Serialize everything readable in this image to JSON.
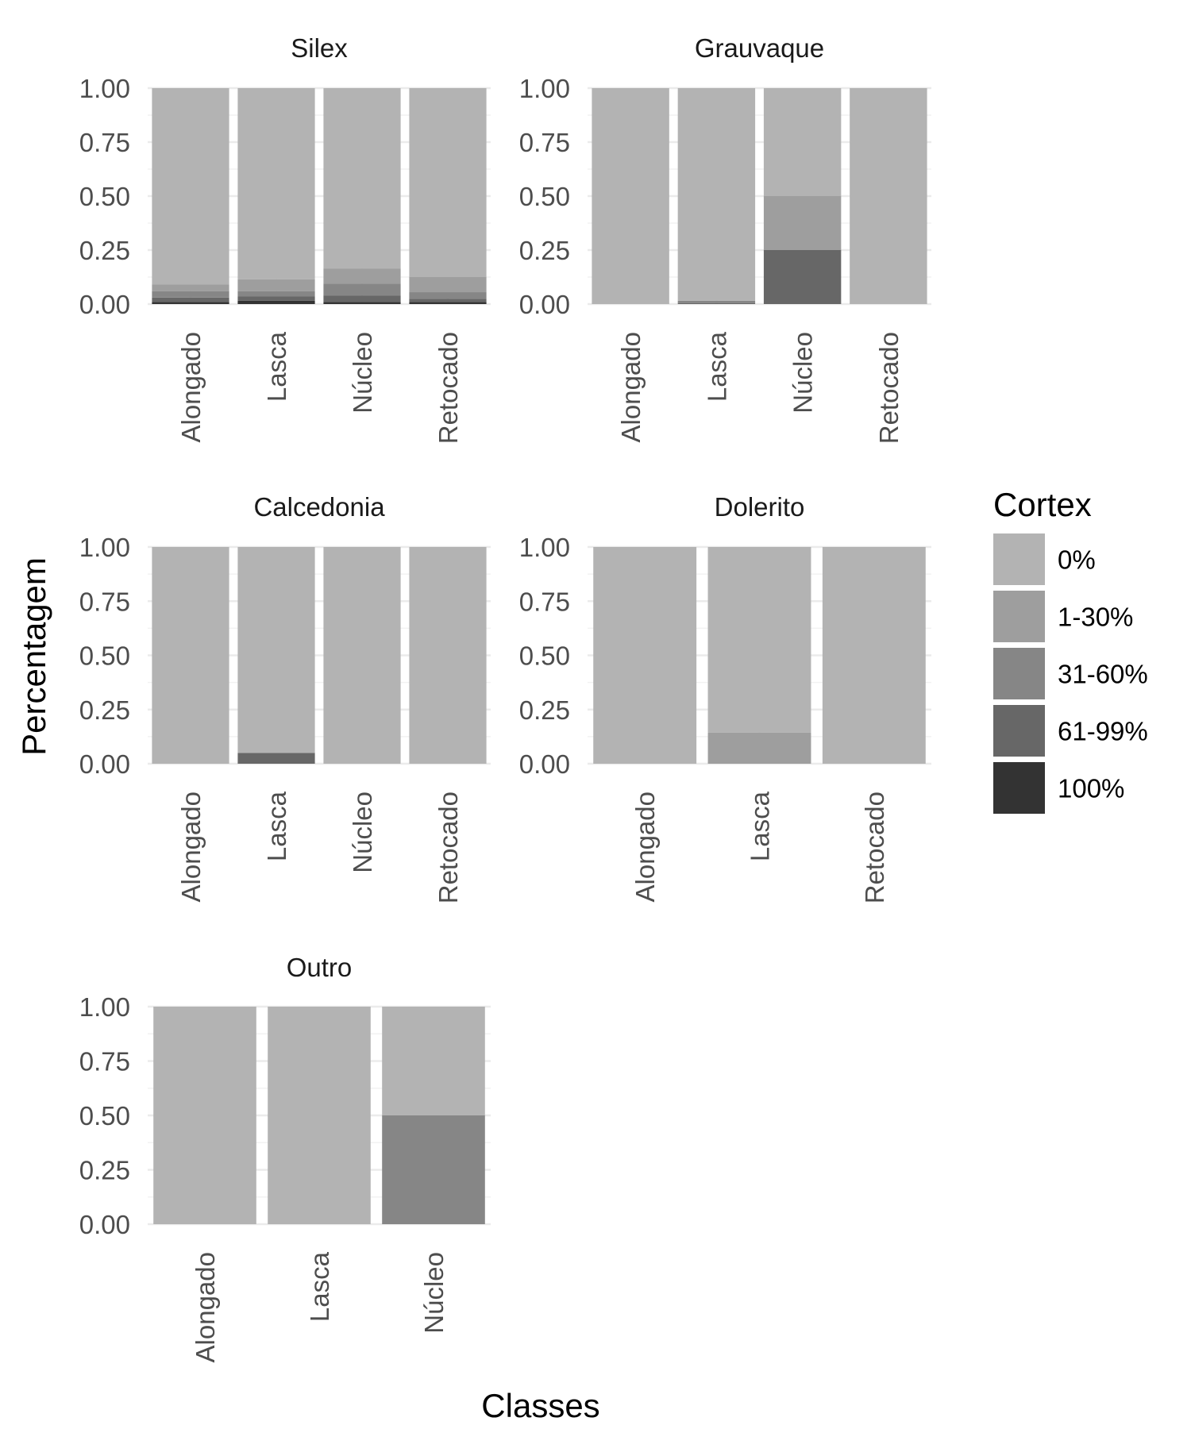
{
  "chart_data": {
    "type": "bar",
    "stacked": true,
    "xlabel": "Classes",
    "ylabel": "Percentagem",
    "ylim": [
      0,
      1
    ],
    "y_ticks": [
      "0.00",
      "0.25",
      "0.50",
      "0.75",
      "1.00"
    ],
    "grid": true,
    "legend": {
      "title": "Cortex",
      "placement": "right",
      "items": [
        {
          "label": "0%",
          "color": "#b3b3b3"
        },
        {
          "label": "1-30%",
          "color": "#9e9e9e"
        },
        {
          "label": "31-60%",
          "color": "#868686"
        },
        {
          "label": "61-99%",
          "color": "#676767"
        },
        {
          "label": "100%",
          "color": "#333333"
        }
      ]
    },
    "facets": [
      {
        "title": "Silex",
        "categories": [
          "Alongado",
          "Lasca",
          "Núcleo",
          "Retocado"
        ],
        "series": [
          {
            "name": "0%",
            "values": [
              0.91,
              0.885,
              0.835,
              0.875
            ]
          },
          {
            "name": "1-30%",
            "values": [
              0.03,
              0.055,
              0.07,
              0.07
            ]
          },
          {
            "name": "31-60%",
            "values": [
              0.03,
              0.025,
              0.055,
              0.03
            ]
          },
          {
            "name": "61-99%",
            "values": [
              0.02,
              0.02,
              0.03,
              0.015
            ]
          },
          {
            "name": "100%",
            "values": [
              0.01,
              0.015,
              0.01,
              0.01
            ]
          }
        ]
      },
      {
        "title": "Grauvaque",
        "categories": [
          "Alongado",
          "Lasca",
          "Núcleo",
          "Retocado"
        ],
        "series": [
          {
            "name": "0%",
            "values": [
              1.0,
              0.985,
              0.5,
              1.0
            ]
          },
          {
            "name": "1-30%",
            "values": [
              0,
              0,
              0.25,
              0
            ]
          },
          {
            "name": "31-60%",
            "values": [
              0,
              0.01,
              0,
              0
            ]
          },
          {
            "name": "61-99%",
            "values": [
              0,
              0.005,
              0.25,
              0
            ]
          },
          {
            "name": "100%",
            "values": [
              0,
              0,
              0,
              0
            ]
          }
        ]
      },
      {
        "title": "Calcedonia",
        "categories": [
          "Alongado",
          "Lasca",
          "Núcleo",
          "Retocado"
        ],
        "series": [
          {
            "name": "0%",
            "values": [
              1.0,
              0.95,
              1.0,
              1.0
            ]
          },
          {
            "name": "1-30%",
            "values": [
              0,
              0,
              0,
              0
            ]
          },
          {
            "name": "31-60%",
            "values": [
              0,
              0,
              0,
              0
            ]
          },
          {
            "name": "61-99%",
            "values": [
              0,
              0.05,
              0,
              0
            ]
          },
          {
            "name": "100%",
            "values": [
              0,
              0,
              0,
              0
            ]
          }
        ]
      },
      {
        "title": "Dolerito",
        "categories": [
          "Alongado",
          "Lasca",
          "Retocado"
        ],
        "series": [
          {
            "name": "0%",
            "values": [
              1.0,
              0.857,
              1.0
            ]
          },
          {
            "name": "1-30%",
            "values": [
              0,
              0.143,
              0
            ]
          },
          {
            "name": "31-60%",
            "values": [
              0,
              0,
              0
            ]
          },
          {
            "name": "61-99%",
            "values": [
              0,
              0,
              0
            ]
          },
          {
            "name": "100%",
            "values": [
              0,
              0,
              0
            ]
          }
        ]
      },
      {
        "title": "Outro",
        "categories": [
          "Alongado",
          "Lasca",
          "Núcleo"
        ],
        "series": [
          {
            "name": "0%",
            "values": [
              1.0,
              1.0,
              0.5
            ]
          },
          {
            "name": "1-30%",
            "values": [
              0,
              0,
              0
            ]
          },
          {
            "name": "31-60%",
            "values": [
              0,
              0,
              0.5
            ]
          },
          {
            "name": "61-99%",
            "values": [
              0,
              0,
              0
            ]
          },
          {
            "name": "100%",
            "values": [
              0,
              0,
              0
            ]
          }
        ]
      }
    ]
  }
}
